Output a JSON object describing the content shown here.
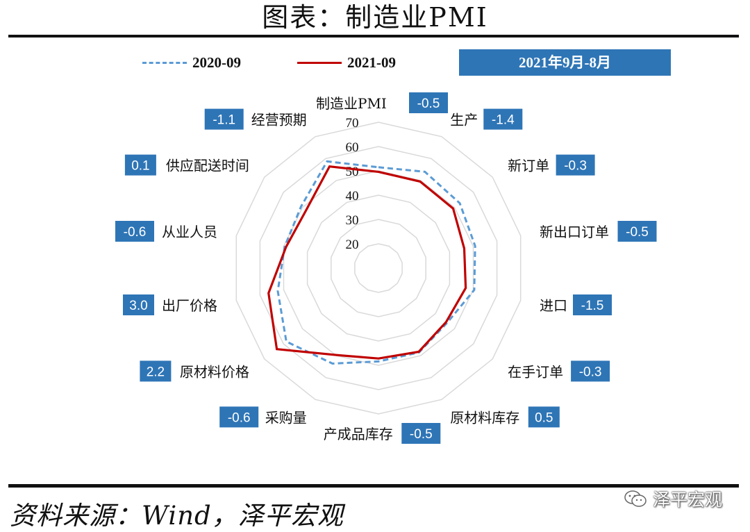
{
  "header": {
    "title": "图表：制造业PMI"
  },
  "legend": {
    "series_1": "2020-09",
    "series_2": "2021-09"
  },
  "period_badge": "2021年9月-8月",
  "chart_data": {
    "type": "radar",
    "rmin": 10,
    "rmax": 70,
    "ticks": [
      20,
      30,
      40,
      50,
      60,
      70
    ],
    "tick_labels": [
      "20",
      "30",
      "40",
      "50",
      "60",
      "70"
    ],
    "categories": [
      "制造业PMI",
      "生产",
      "新订单",
      "新出口订单",
      "进口",
      "在手订单",
      "原材料库存",
      "产成品库存",
      "采购量",
      "原材料价格",
      "出厂价格",
      "从业人员",
      "供应配送时间",
      "经营预期"
    ],
    "changes": [
      "-0.5",
      "-1.4",
      "-0.3",
      "-0.5",
      "-1.5",
      "-0.3",
      "0.5",
      "-0.5",
      "-0.6",
      "2.2",
      "3.0",
      "-0.6",
      "0.1",
      "-1.1"
    ],
    "series": [
      {
        "name": "2020-09",
        "color": "#5b9bd5",
        "style": "dashed",
        "values": [
          51.5,
          54.0,
          52.8,
          50.8,
          50.4,
          46.1,
          48.5,
          48.4,
          53.6,
          58.5,
          52.5,
          49.6,
          50.7,
          58.7
        ]
      },
      {
        "name": "2021-09",
        "color": "#c00000",
        "style": "solid",
        "values": [
          49.6,
          49.5,
          49.3,
          46.2,
          46.8,
          45.6,
          48.2,
          47.2,
          49.7,
          63.5,
          56.4,
          49.0,
          48.1,
          56.4
        ]
      }
    ]
  },
  "source": "资料来源：Wind，泽平宏观",
  "watermark": {
    "text": "泽平宏观",
    "icon": "wechat-icon"
  }
}
